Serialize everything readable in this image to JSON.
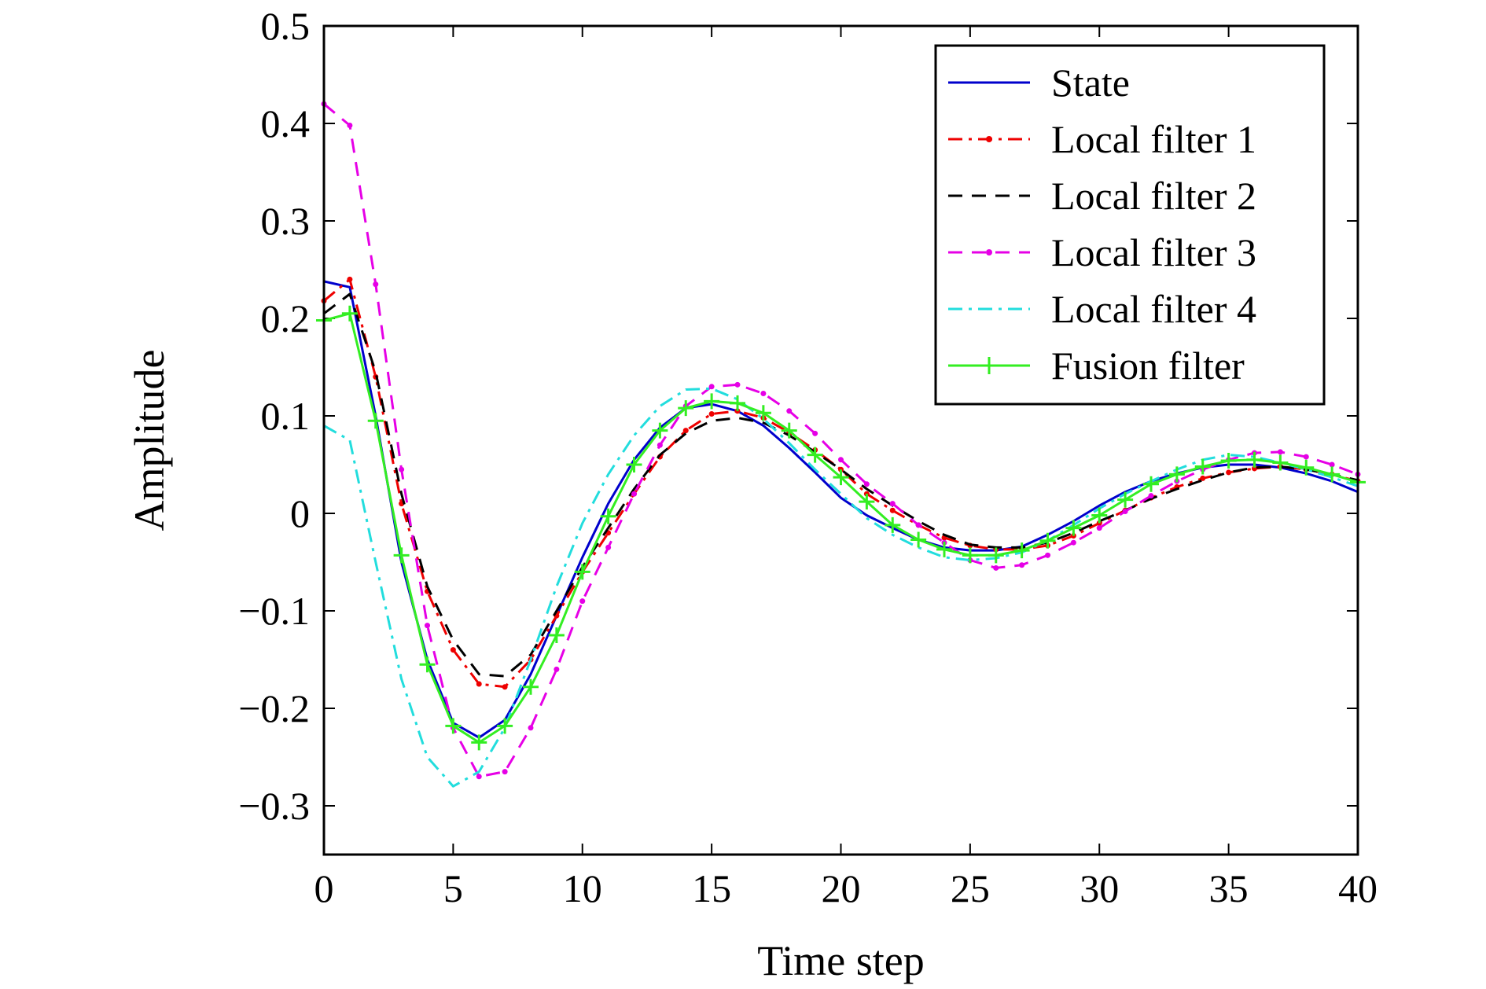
{
  "chart_data": {
    "type": "line",
    "title": "",
    "xlabel": "Time step",
    "ylabel": "Amplitude",
    "xlim": [
      0,
      40
    ],
    "ylim": [
      -0.35,
      0.5
    ],
    "xticks": [
      0,
      5,
      10,
      15,
      20,
      25,
      30,
      35,
      40
    ],
    "xtick_labels": [
      "0",
      "5",
      "10",
      "15",
      "20",
      "25",
      "30",
      "35",
      "40"
    ],
    "yticks": [
      0.5,
      0.4,
      0.3,
      0.2,
      0.1,
      0,
      -0.1,
      -0.2,
      -0.3
    ],
    "ytick_labels": [
      "0.5",
      "0.4",
      "0.3",
      "0.2",
      "0.1",
      "0",
      "−0.1",
      "−0.2",
      "−0.3"
    ],
    "grid": false,
    "legend_position": "top-right",
    "x": [
      0,
      1,
      2,
      3,
      4,
      5,
      6,
      7,
      8,
      9,
      10,
      11,
      12,
      13,
      14,
      15,
      16,
      17,
      18,
      19,
      20,
      21,
      22,
      23,
      24,
      25,
      26,
      27,
      28,
      29,
      30,
      31,
      32,
      33,
      34,
      35,
      36,
      37,
      38,
      39,
      40
    ],
    "series": [
      {
        "name": "State",
        "color": "#0000cc",
        "style": "solid",
        "marker": "none",
        "values": [
          0.238,
          0.232,
          0.1,
          -0.05,
          -0.15,
          -0.215,
          -0.23,
          -0.212,
          -0.165,
          -0.105,
          -0.045,
          0.01,
          0.055,
          0.088,
          0.108,
          0.112,
          0.105,
          0.09,
          0.067,
          0.042,
          0.016,
          -0.002,
          -0.015,
          -0.027,
          -0.035,
          -0.038,
          -0.038,
          -0.034,
          -0.022,
          -0.008,
          0.008,
          0.022,
          0.033,
          0.041,
          0.047,
          0.05,
          0.05,
          0.047,
          0.041,
          0.033,
          0.022
        ]
      },
      {
        "name": "Local filter 1",
        "color": "#ee0000",
        "style": "dashdot",
        "marker": "dot",
        "values": [
          0.218,
          0.24,
          0.14,
          0.01,
          -0.08,
          -0.14,
          -0.175,
          -0.178,
          -0.15,
          -0.105,
          -0.06,
          -0.02,
          0.02,
          0.058,
          0.085,
          0.102,
          0.105,
          0.098,
          0.083,
          0.065,
          0.045,
          0.02,
          0.003,
          -0.012,
          -0.025,
          -0.033,
          -0.037,
          -0.037,
          -0.033,
          -0.023,
          -0.01,
          0.003,
          0.016,
          0.027,
          0.036,
          0.042,
          0.046,
          0.048,
          0.045,
          0.04,
          0.033
        ]
      },
      {
        "name": "Local filter 2",
        "color": "#000000",
        "style": "dashed",
        "marker": "none",
        "values": [
          0.205,
          0.225,
          0.145,
          0.02,
          -0.075,
          -0.13,
          -0.165,
          -0.167,
          -0.145,
          -0.1,
          -0.055,
          -0.015,
          0.025,
          0.06,
          0.082,
          0.095,
          0.098,
          0.093,
          0.08,
          0.063,
          0.045,
          0.025,
          0.008,
          -0.008,
          -0.022,
          -0.032,
          -0.035,
          -0.035,
          -0.03,
          -0.02,
          -0.008,
          0.003,
          0.015,
          0.025,
          0.034,
          0.042,
          0.047,
          0.048,
          0.045,
          0.04,
          0.034
        ]
      },
      {
        "name": "Local filter 3",
        "color": "#e600e6",
        "style": "dashed",
        "marker": "dot",
        "values": [
          0.42,
          0.398,
          0.235,
          0.045,
          -0.115,
          -0.22,
          -0.27,
          -0.265,
          -0.22,
          -0.16,
          -0.09,
          -0.035,
          0.02,
          0.07,
          0.11,
          0.13,
          0.132,
          0.123,
          0.105,
          0.082,
          0.055,
          0.03,
          0.01,
          -0.012,
          -0.03,
          -0.048,
          -0.056,
          -0.053,
          -0.043,
          -0.03,
          -0.015,
          0.002,
          0.018,
          0.033,
          0.045,
          0.055,
          0.062,
          0.063,
          0.058,
          0.05,
          0.04
        ]
      },
      {
        "name": "Local filter 4",
        "color": "#22dddd",
        "style": "dashdot",
        "marker": "none",
        "values": [
          0.09,
          0.075,
          -0.05,
          -0.17,
          -0.25,
          -0.28,
          -0.265,
          -0.22,
          -0.15,
          -0.075,
          -0.01,
          0.04,
          0.08,
          0.11,
          0.127,
          0.128,
          0.117,
          0.097,
          0.072,
          0.045,
          0.02,
          -0.005,
          -0.022,
          -0.035,
          -0.045,
          -0.048,
          -0.046,
          -0.04,
          -0.028,
          -0.012,
          0.005,
          0.02,
          0.033,
          0.045,
          0.055,
          0.06,
          0.058,
          0.052,
          0.045,
          0.037,
          0.028
        ]
      },
      {
        "name": "Fusion filter",
        "color": "#33ee22",
        "style": "solid",
        "marker": "plus",
        "values": [
          0.198,
          0.205,
          0.095,
          -0.043,
          -0.155,
          -0.218,
          -0.235,
          -0.218,
          -0.178,
          -0.125,
          -0.06,
          -0.003,
          0.05,
          0.085,
          0.108,
          0.115,
          0.113,
          0.103,
          0.085,
          0.06,
          0.037,
          0.012,
          -0.012,
          -0.027,
          -0.037,
          -0.043,
          -0.043,
          -0.038,
          -0.028,
          -0.015,
          -0.002,
          0.014,
          0.03,
          0.04,
          0.048,
          0.054,
          0.055,
          0.052,
          0.047,
          0.04,
          0.032
        ]
      }
    ]
  }
}
